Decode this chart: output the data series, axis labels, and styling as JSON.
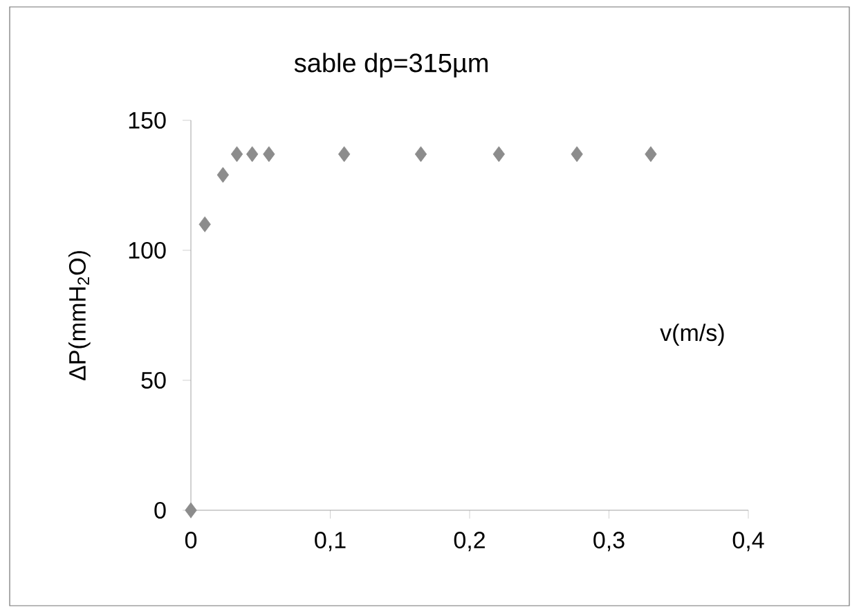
{
  "chart_data": {
    "type": "scatter",
    "title": "sable dp=315µm",
    "xlabel": "v(m/s)",
    "ylabel": "ΔP(mmH$_{2}$O)",
    "x": [
      0,
      0.01,
      0.023,
      0.033,
      0.044,
      0.056,
      0.11,
      0.165,
      0.221,
      0.277,
      0.33
    ],
    "values": [
      0,
      110,
      129,
      137,
      137,
      137,
      137,
      137,
      137,
      137,
      137
    ],
    "color": "#8c8c8c",
    "marker": "diamond",
    "xlim": [
      0,
      0.4
    ],
    "ylim": [
      0,
      150
    ],
    "xticks": [
      0,
      {
        "value": 0.1,
        "label": "0,1"
      },
      {
        "value": 0.2,
        "label": "0,2"
      },
      {
        "value": 0.3,
        "label": "0,3"
      },
      {
        "value": 0.4,
        "label": "0,4"
      }
    ],
    "yticks": [
      0,
      50,
      100,
      150
    ]
  }
}
